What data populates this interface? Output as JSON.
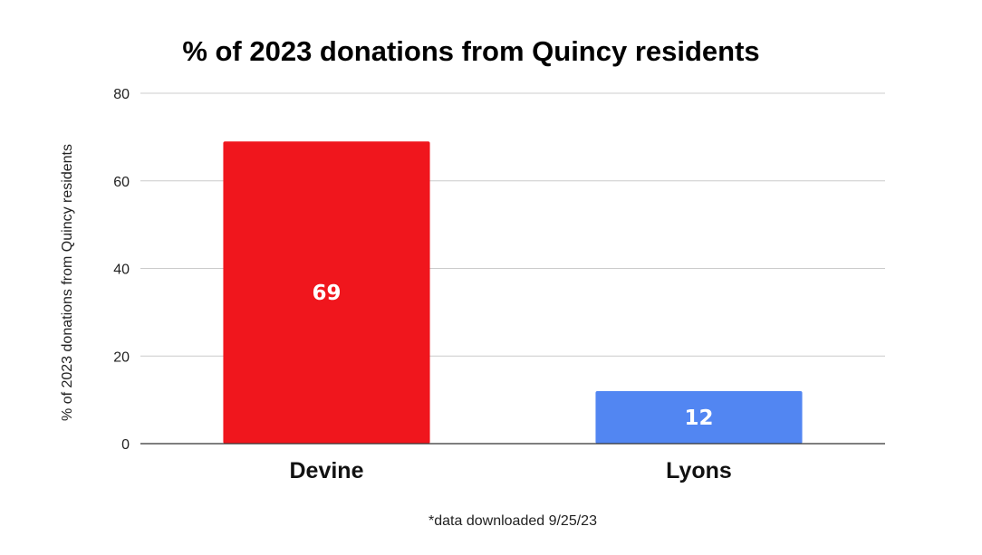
{
  "chart_data": {
    "type": "bar",
    "title": "% of 2023 donations from Quincy residents",
    "ylabel": "% of 2023 donations from Quincy residents",
    "xlabel": "",
    "categories": [
      "Devine",
      "Lyons"
    ],
    "values": [
      69,
      12
    ],
    "data_labels": [
      "69",
      "12"
    ],
    "bar_colors": [
      "#f0161d",
      "#5286f2"
    ],
    "ylim": [
      0,
      80
    ],
    "yticks": [
      "0",
      "20",
      "40",
      "60",
      "80"
    ],
    "grid": true,
    "legend": "none"
  },
  "footnote": "*data downloaded 9/25/23"
}
